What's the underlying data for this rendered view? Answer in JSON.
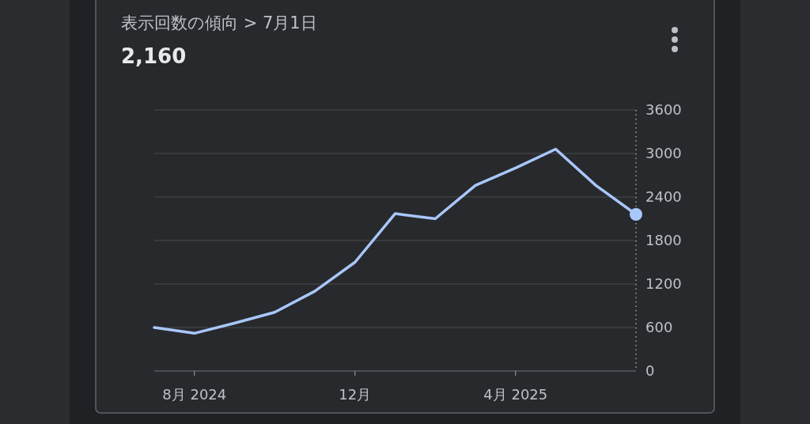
{
  "chart_data": {
    "type": "line",
    "title": "表示回数の傾向 > 7月1日",
    "subtitle": "2,160",
    "categories": [
      null,
      "8月 2024",
      null,
      null,
      null,
      "12月",
      null,
      null,
      null,
      "4月 2025",
      null,
      null,
      null
    ],
    "series": [
      {
        "color": "#a8c7fa",
        "values": [
          600,
          520,
          660,
          810,
          1100,
          1500,
          2170,
          2100,
          2560,
          2800,
          3060,
          2560,
          2160
        ]
      }
    ],
    "ylim": [
      0,
      3600
    ],
    "yticks": [
      0,
      600,
      1200,
      1800,
      2400,
      3000,
      3600
    ],
    "grid": "y",
    "marker": "none",
    "line_style": "solid"
  }
}
